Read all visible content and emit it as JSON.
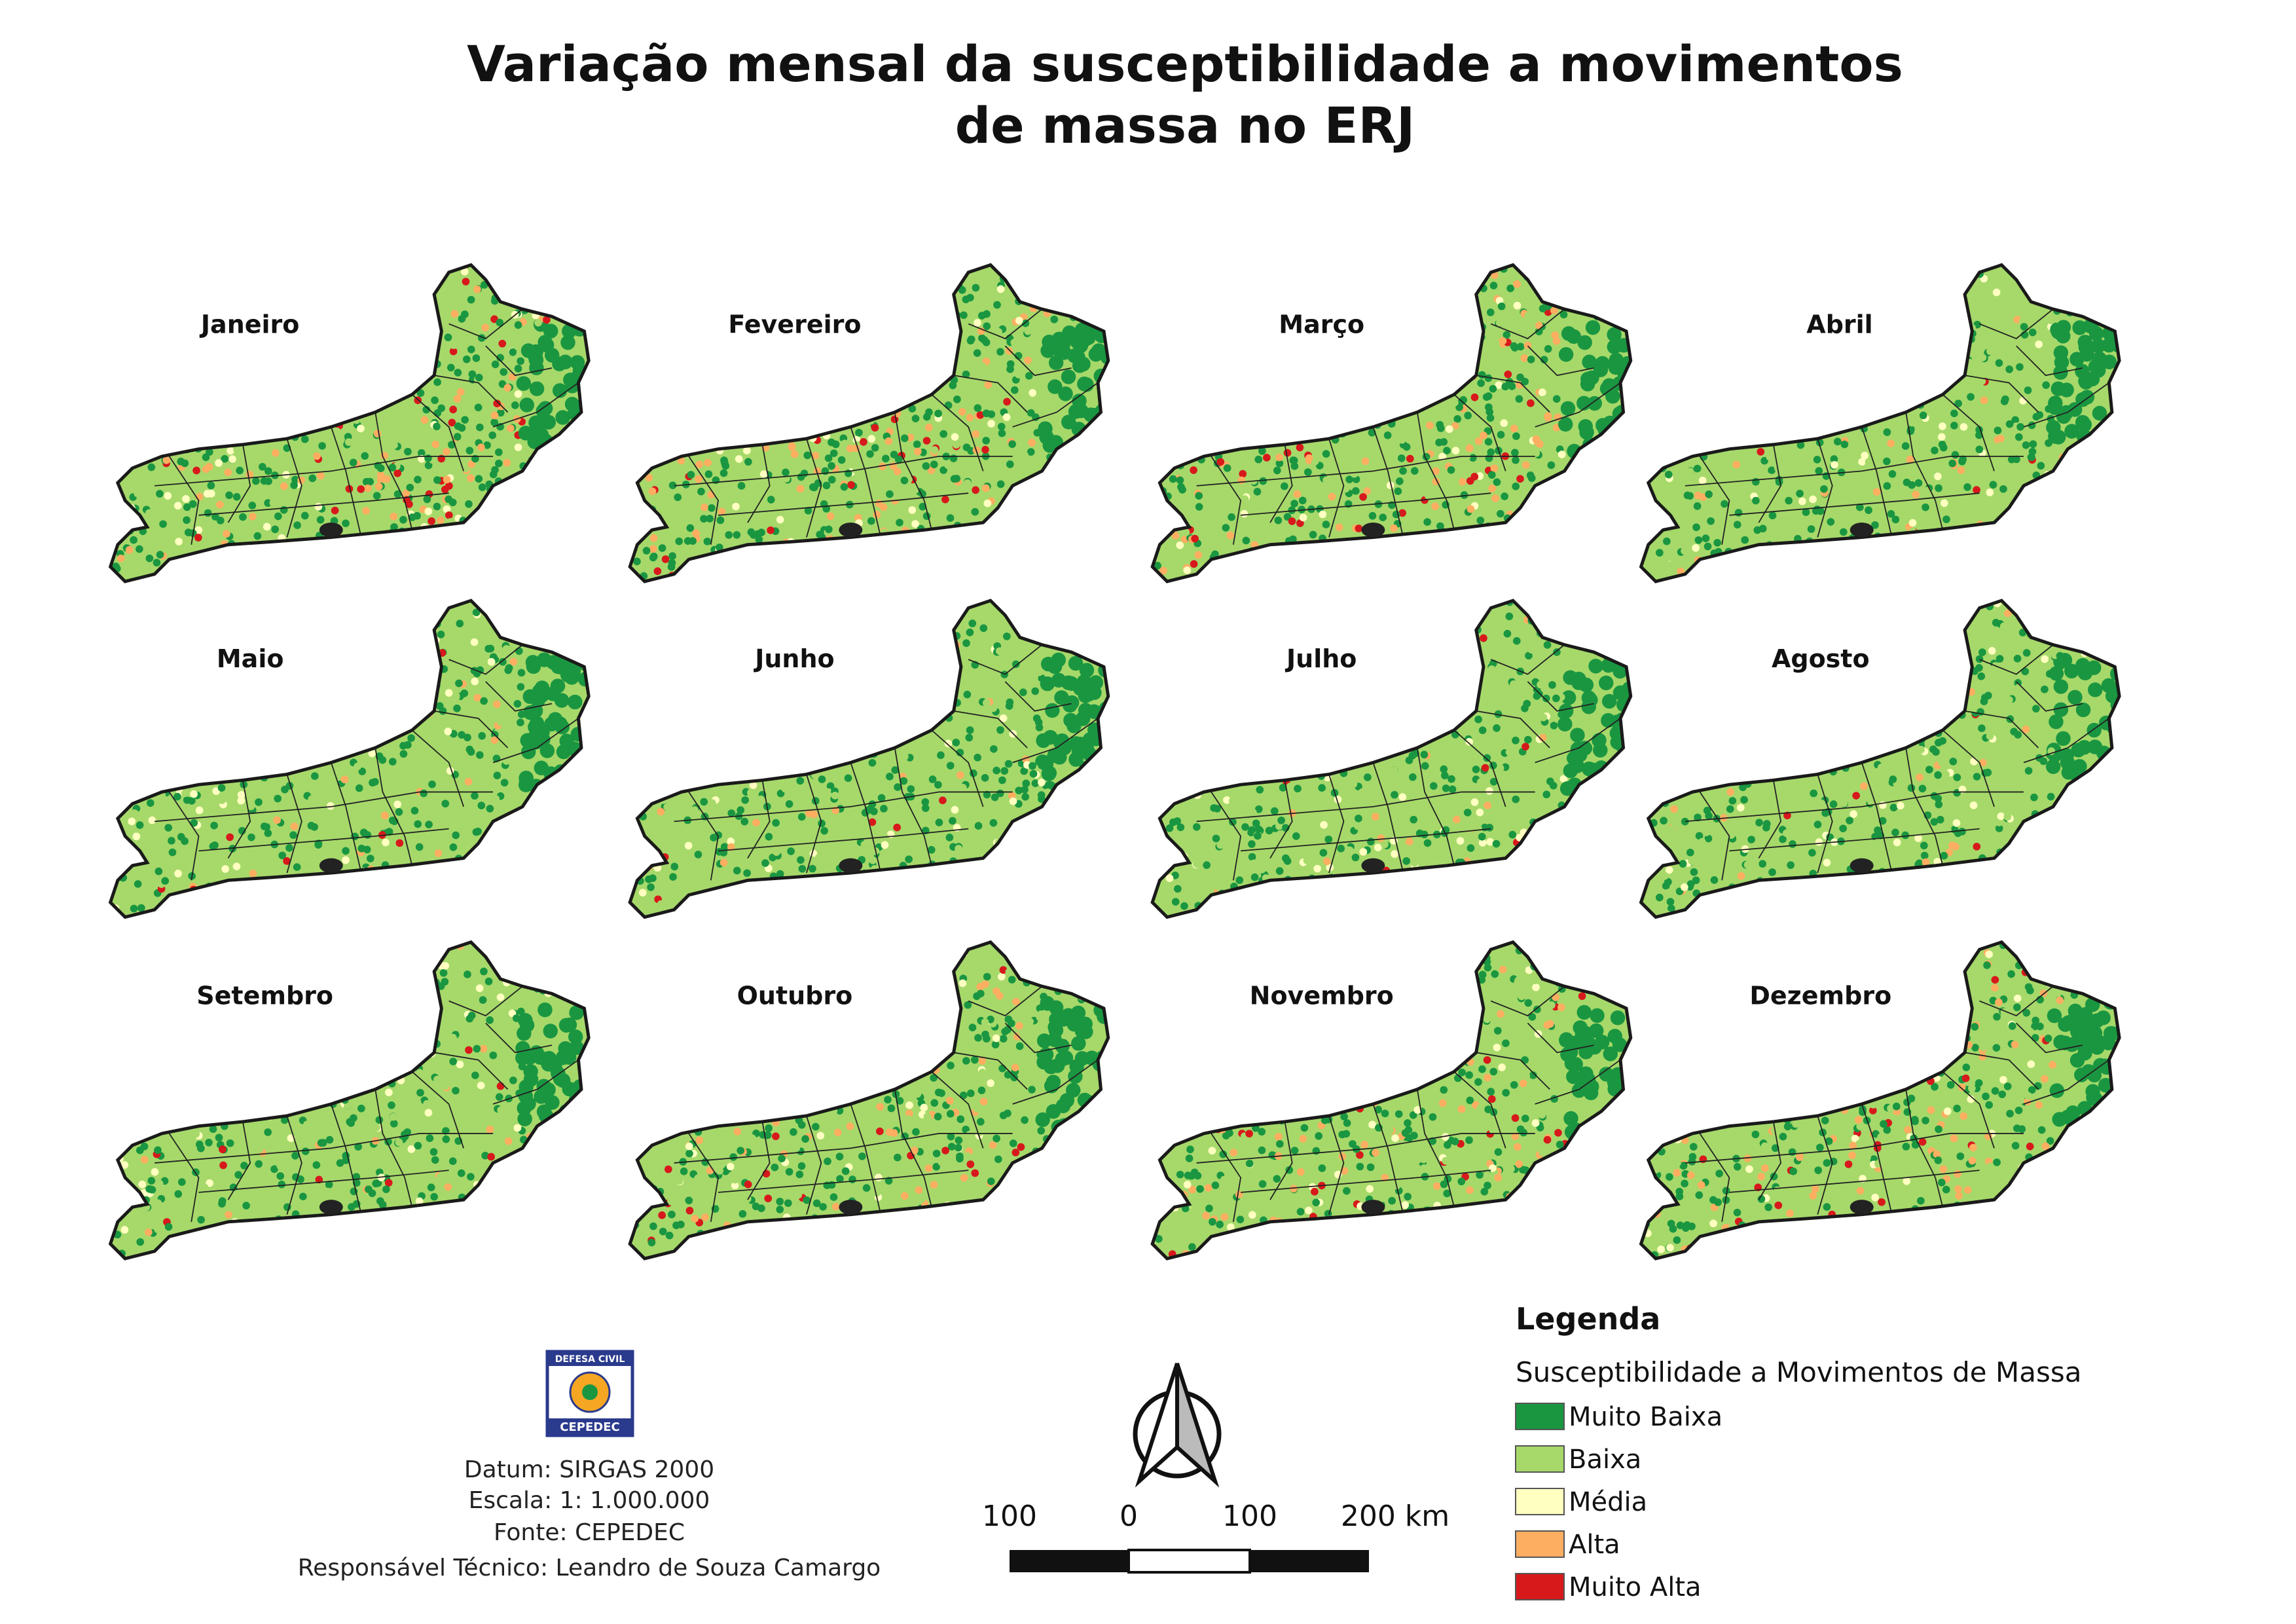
{
  "header": {
    "title": [
      "Variação mensal da susceptibilidade a movimentos",
      "de massa no ERJ"
    ]
  },
  "maps": [
    "Janeiro",
    "Fevereiro",
    "Março",
    "Abril",
    "Maio",
    "Junho",
    "Julho",
    "Agosto",
    "Setembro",
    "Outubro",
    "Novembro",
    "Dezembro"
  ],
  "logo": {
    "top": "DEFESA CIVIL",
    "bottom": "CEPEDEC"
  },
  "info": [
    "Datum: SIRGAS 2000",
    "Escala: 1: 1.000.000",
    "Fonte: CEPEDEC",
    "Responsável Técnico: Leandro de Souza Camargo"
  ],
  "scale_bar": [
    "100",
    "0",
    "100",
    "200 km"
  ],
  "legend": {
    "title": "Legenda",
    "subtitle": "Susceptibilidade a Movimentos de Massa",
    "items": [
      {
        "name": "Muito Baixa",
        "color": "#1a9641"
      },
      {
        "name": "Baixa",
        "color": "#a6d96a"
      },
      {
        "name": "Média",
        "color": "#ffffc0"
      },
      {
        "name": "Alta",
        "color": "#fdae61"
      },
      {
        "name": "Muito Alta",
        "color": "#d7191c"
      }
    ]
  }
}
